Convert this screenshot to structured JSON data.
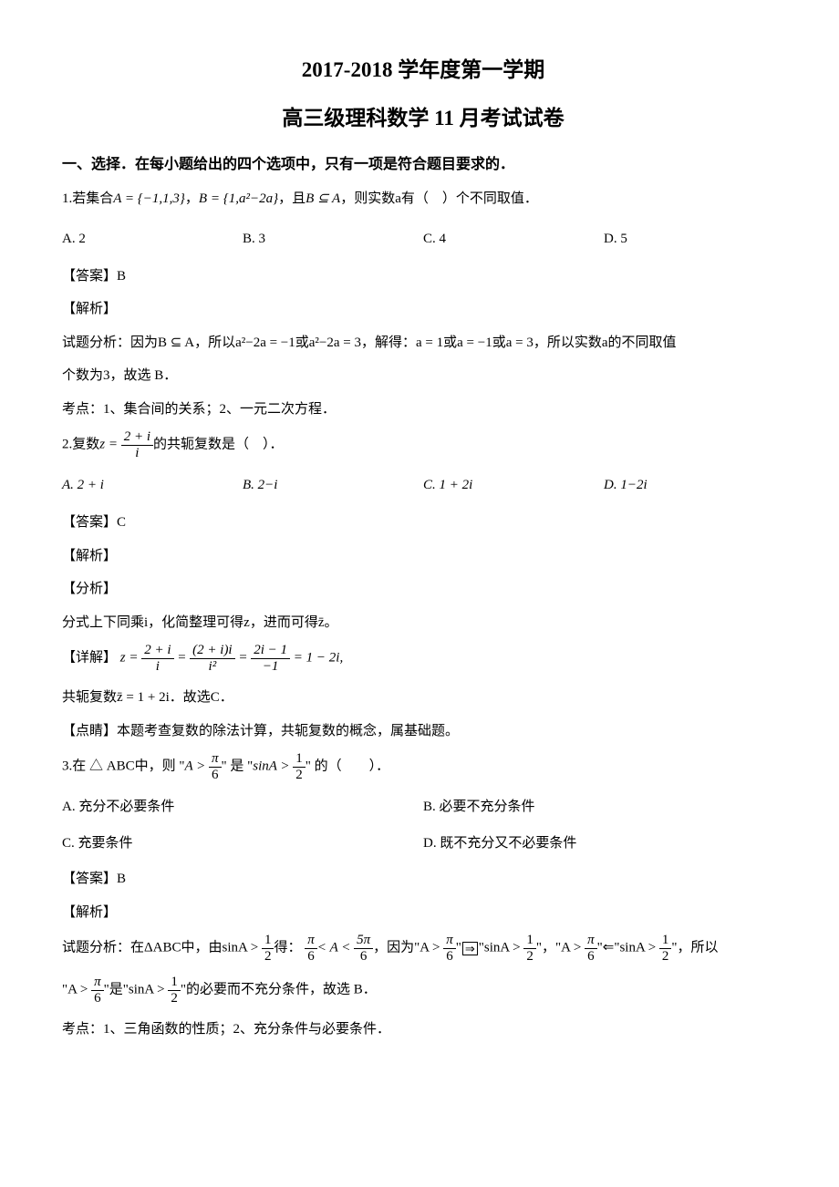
{
  "title_main": "2017-2018 学年度第一学期",
  "title_sub": "高三级理科数学 11 月考试试卷",
  "section_heading": "一、选择．在每小题给出的四个选项中，只有一项是符合题目要求的．",
  "q1": {
    "text_prefix": "1.若集合",
    "math1": "A = {−1,1,3}",
    "sep1": "，",
    "math2": "B = {1,a²−2a}",
    "sep2": "，且",
    "math3": "B ⊆ A",
    "text_suffix": "，则实数a有（　）个不同取值．",
    "choice_a": "A. 2",
    "choice_b": "B. 3",
    "choice_c": "C. 4",
    "choice_d": "D. 5",
    "answer": "【答案】B",
    "analysis_label": "【解析】",
    "analysis_line1": "试题分析：因为B ⊆ A，所以a²−2a = −1或a²−2a = 3，解得：a = 1或a = −1或a = 3，所以实数a的不同取值",
    "analysis_line2": "个数为3，故选 B．",
    "kaodian": "考点：1、集合间的关系；2、一元二次方程．"
  },
  "q2": {
    "prefix": "2.复数",
    "z_eq": "z =",
    "frac_num": "2 + i",
    "frac_den": "i",
    "suffix": "的共轭复数是（　）．",
    "choice_a": "A. 2 + i",
    "choice_b": "B. 2−i",
    "choice_c": "C. 1 + 2i",
    "choice_d": "D. 1−2i",
    "answer": "【答案】C",
    "analysis_label": "【解析】",
    "fenxi_label": "【分析】",
    "fenxi_text": "分式上下同乘i，化简整理可得z，进而可得z̄。",
    "detail_label": "【详解】",
    "d_num1": "2 + i",
    "d_den1": "i",
    "d_num2": "(2 + i)i",
    "d_den2": "i²",
    "d_num3": "2i − 1",
    "d_den3": "−1",
    "d_result": "= 1 − 2i,",
    "conj": "共轭复数z̄ = 1 + 2i．故选C．",
    "dianqing": "【点睛】本题考查复数的除法计算，共轭复数的概念，属基础题。"
  },
  "q3": {
    "prefix": "3.在 △ ABC中，则 \"",
    "a_gt": "A >",
    "pi": "π",
    "six": "6",
    "mid": "\" 是 \"",
    "sin_gt": "sinA >",
    "one": "1",
    "two": "2",
    "suffix": "\" 的（　　）．",
    "choice_a": "A. 充分不必要条件",
    "choice_b": "B. 必要不充分条件",
    "choice_c": "C. 充要条件",
    "choice_d": "D. 既不充分又不必要条件",
    "answer": "【答案】B",
    "analysis_label": "【解析】",
    "ana1_prefix": "试题分析：在ΔABC中，由sinA >",
    "ana1_mid1": "得：",
    "ana1_mid2": "< A <",
    "five_pi": "5π",
    "ana1_mid3": "，因为\"A >",
    "ana1_notimply": "\"",
    "ana1_not": "⇒",
    "ana1_str": "\"sinA >",
    "ana1_close": "\"，\"A >",
    "ana1_impliedby": "\"⇐\"sinA >",
    "ana1_end": "\"，所以",
    "ana2_prefix": "\"A >",
    "ana2_mid": "\"是\"sinA >",
    "ana2_end": "\"的必要而不充分条件，故选 B．",
    "kaodian": "考点：1、三角函数的性质；2、充分条件与必要条件．"
  }
}
